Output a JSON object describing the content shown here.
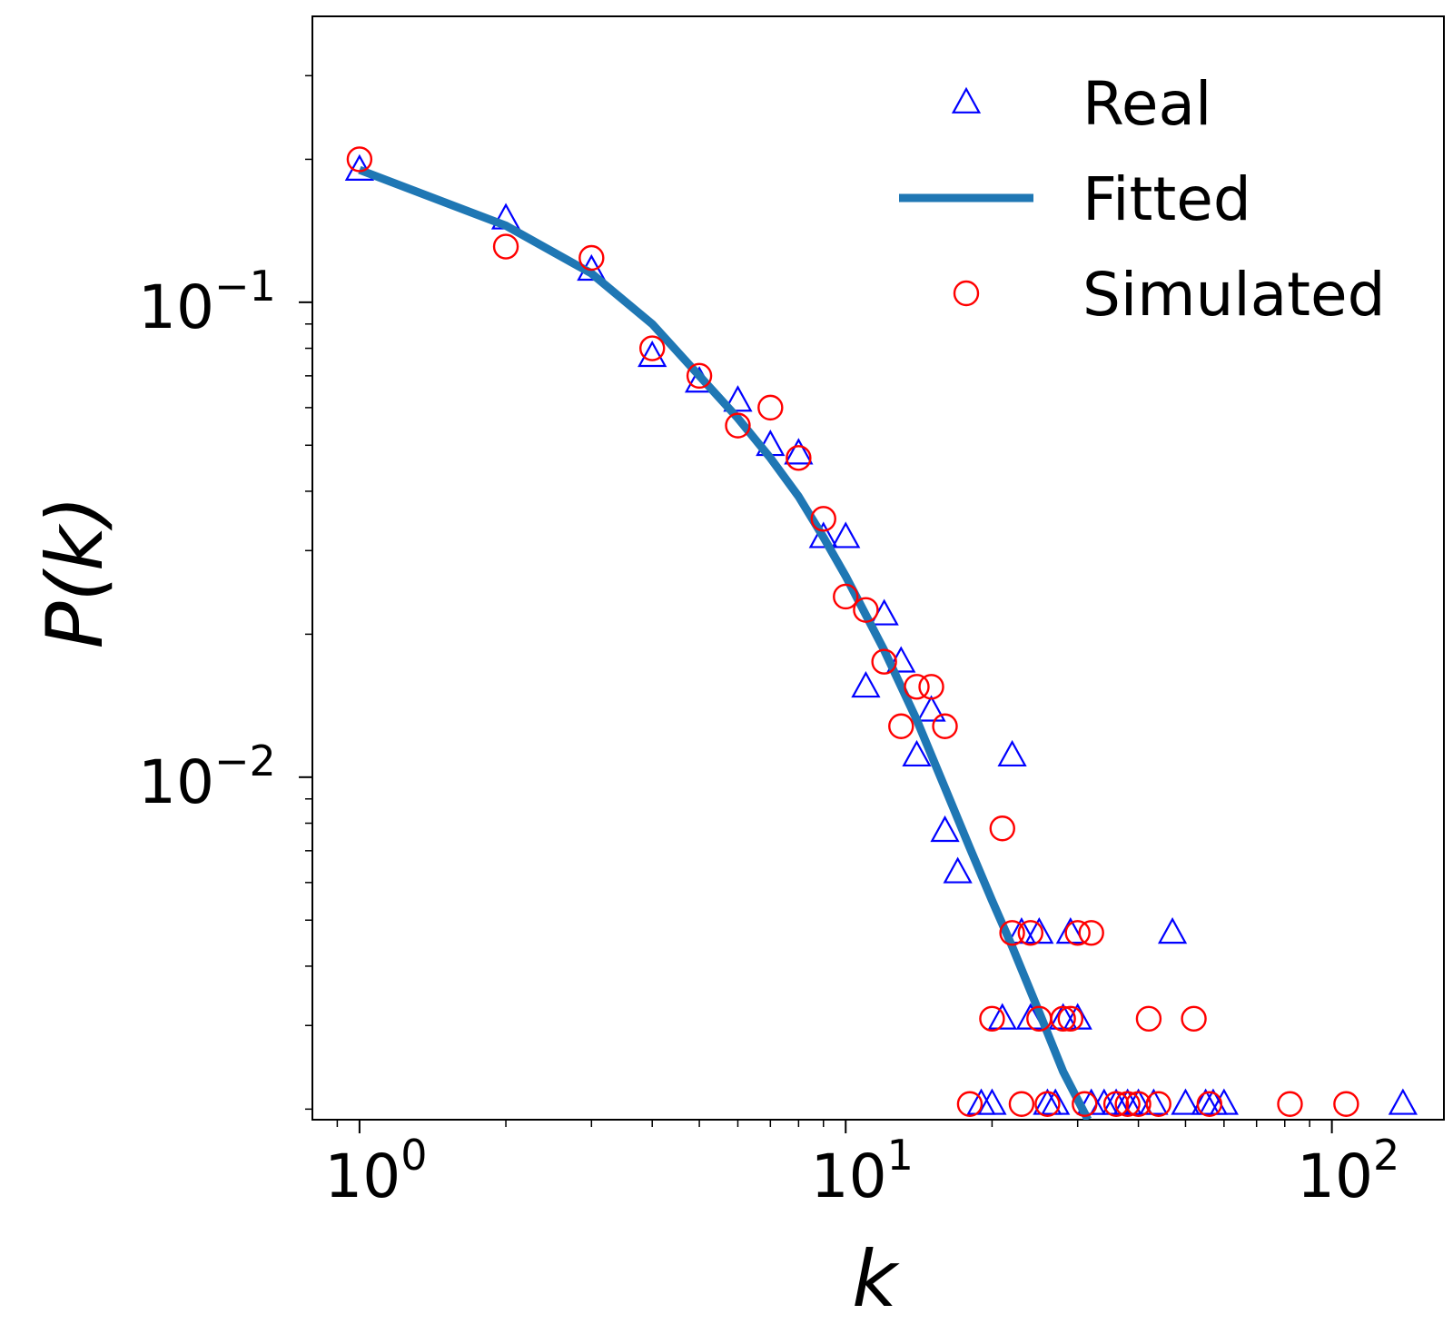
{
  "chart_data": {
    "type": "scatter",
    "xlabel": "k",
    "ylabel": "P(k)",
    "xscale": "log",
    "yscale": "log",
    "xlim": [
      0.8,
      170
    ],
    "ylim": [
      0.0019,
      0.4
    ],
    "grid": false,
    "legend_position": "top-right",
    "x_ticks": [
      {
        "value": 1,
        "base": "10",
        "exp": "0"
      },
      {
        "value": 10,
        "base": "10",
        "exp": "1"
      },
      {
        "value": 100,
        "base": "10",
        "exp": "2"
      }
    ],
    "y_ticks": [
      {
        "value": 0.1,
        "base": "10",
        "exp": "−1"
      },
      {
        "value": 0.01,
        "base": "10",
        "exp": "−2"
      }
    ],
    "series": [
      {
        "name": "Real",
        "marker": "triangle",
        "color": "#0000ff",
        "x": [
          1,
          2,
          3,
          4,
          5,
          6,
          7,
          8,
          9,
          10,
          11,
          12,
          13,
          14,
          15,
          16,
          17,
          19,
          20,
          21,
          22,
          23,
          24,
          25,
          26,
          27,
          28,
          29,
          30,
          32,
          34,
          36,
          38,
          40,
          43,
          47,
          50,
          55,
          57,
          60,
          140
        ],
        "y": [
          0.19,
          0.15,
          0.117,
          0.077,
          0.068,
          0.062,
          0.05,
          0.048,
          0.032,
          0.032,
          0.0155,
          0.022,
          0.0175,
          0.0111,
          0.0138,
          0.0077,
          0.0063,
          0.00205,
          0.00205,
          0.0031,
          0.0111,
          0.0047,
          0.0031,
          0.0047,
          0.00205,
          0.00205,
          0.0031,
          0.0047,
          0.0031,
          0.00205,
          0.00205,
          0.00205,
          0.00205,
          0.00205,
          0.00205,
          0.0047,
          0.00205,
          0.00205,
          0.00205,
          0.00205,
          0.00205
        ]
      },
      {
        "name": "Simulated",
        "marker": "circle",
        "color": "#ff0000",
        "x": [
          1,
          2,
          3,
          4,
          5,
          6,
          7,
          8,
          9,
          10,
          11,
          12,
          13,
          14,
          15,
          16,
          18,
          20,
          21,
          22,
          23,
          24,
          25,
          26,
          28,
          29,
          30,
          31,
          32,
          36,
          38,
          40,
          42,
          44,
          52,
          56,
          82,
          107
        ],
        "y": [
          0.2,
          0.131,
          0.124,
          0.08,
          0.07,
          0.055,
          0.06,
          0.047,
          0.035,
          0.024,
          0.0225,
          0.0175,
          0.0128,
          0.0155,
          0.0155,
          0.0128,
          0.00205,
          0.0031,
          0.0078,
          0.0047,
          0.00205,
          0.0047,
          0.0031,
          0.00205,
          0.0031,
          0.0031,
          0.0047,
          0.00205,
          0.0047,
          0.00205,
          0.00205,
          0.00205,
          0.0031,
          0.00205,
          0.0031,
          0.00205,
          0.00205,
          0.00205
        ]
      },
      {
        "name": "Fitted",
        "marker": "line",
        "color": "#1f77b4",
        "x": [
          1,
          2,
          3,
          4,
          5,
          6,
          7,
          8,
          9,
          10,
          12,
          14,
          16,
          18,
          20,
          22,
          25,
          28,
          31.5
        ],
        "y": [
          0.19,
          0.145,
          0.115,
          0.09,
          0.07,
          0.057,
          0.047,
          0.039,
          0.032,
          0.0265,
          0.0185,
          0.0132,
          0.0095,
          0.0071,
          0.0055,
          0.0044,
          0.0032,
          0.0024,
          0.0019
        ]
      }
    ],
    "legend": [
      {
        "label": "Real",
        "series": 0
      },
      {
        "label": "Fitted",
        "series": 2
      },
      {
        "label": "Simulated",
        "series": 1
      }
    ]
  }
}
